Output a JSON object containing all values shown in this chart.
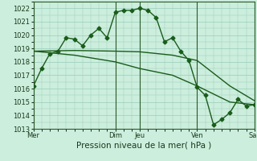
{
  "xlabel": "Pression niveau de la mer( hPa )",
  "bg_color": "#cceedd",
  "grid_color": "#99ccbb",
  "line_color": "#1a5c1a",
  "ylim": [
    1013,
    1022.5
  ],
  "yticks": [
    1013,
    1014,
    1015,
    1016,
    1017,
    1018,
    1019,
    1020,
    1021,
    1022
  ],
  "day_labels": [
    "Mer",
    "Dim",
    "Jeu",
    "Ven",
    "Sar"
  ],
  "day_positions": [
    0,
    10,
    13,
    20,
    27
  ],
  "xlim": [
    0,
    27
  ],
  "series1_x": [
    0,
    1,
    2,
    3,
    4,
    5,
    6,
    7,
    8,
    9,
    10,
    11,
    12,
    13,
    14,
    15,
    16,
    17,
    18,
    19,
    20,
    21,
    22,
    23,
    24,
    25,
    26,
    27
  ],
  "series1_y": [
    1016.2,
    1017.5,
    1018.6,
    1018.8,
    1019.8,
    1019.7,
    1019.2,
    1020.0,
    1020.5,
    1019.8,
    1021.7,
    1021.85,
    1021.85,
    1022.0,
    1021.85,
    1021.3,
    1019.5,
    1019.8,
    1018.8,
    1018.1,
    1016.1,
    1015.5,
    1013.3,
    1013.7,
    1014.2,
    1015.2,
    1014.7,
    1014.8
  ],
  "series2_x": [
    0,
    5,
    10,
    13,
    17,
    20,
    24,
    27
  ],
  "series2_y": [
    1018.8,
    1018.85,
    1018.8,
    1018.75,
    1018.5,
    1018.1,
    1016.2,
    1015.1
  ],
  "series3_x": [
    0,
    5,
    10,
    13,
    17,
    20,
    24,
    27
  ],
  "series3_y": [
    1018.8,
    1018.5,
    1018.0,
    1017.5,
    1017.0,
    1016.2,
    1015.0,
    1014.8
  ],
  "marker_style": "D",
  "marker_size": 2.5,
  "line_width": 1.0,
  "tick_fontsize": 6,
  "xlabel_fontsize": 7.5
}
